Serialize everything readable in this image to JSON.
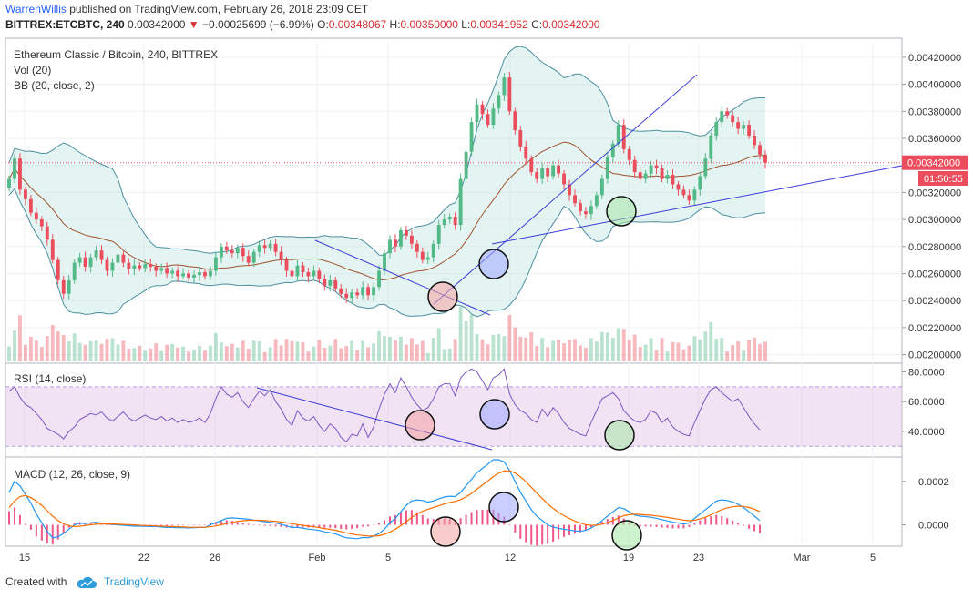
{
  "header": {
    "author": "WarrenWillis",
    "published": "published on TradingView.com, February 26, 2018 23:09 CET",
    "symbol": "BITTREX:ETCBTC, 240",
    "last": "0.00342000",
    "change_icon": "down-triangle-icon",
    "change": "−0.00025699 (−6.99%)",
    "open_label": "O:",
    "open": "0.00348067",
    "high_label": "H:",
    "high": "0.00350000",
    "low_label": "L:",
    "low": "0.00341952",
    "close_label": "C:",
    "close": "0.00342000"
  },
  "legend": {
    "title": "Ethereum Classic / Bitcoin, 240, BITTREX",
    "vol": "Vol (20)",
    "bb": "BB (20, close, 2)",
    "rsi": "RSI (14, close)",
    "macd": "MACD (12, 26, close, 9)"
  },
  "price_tag": {
    "value": "0.00342000",
    "countdown": "01:50:55"
  },
  "footer": {
    "created_with": "Created with",
    "brand": "TradingView",
    "brand_icon": "cloud-logo-icon"
  },
  "colors": {
    "up": "#53b987",
    "down": "#eb4d5c",
    "bb": "#4b8fa0",
    "basis": "#a0522d",
    "rsi": "#7e57c2",
    "macd": "#2196f3",
    "signal": "#ff6d00",
    "trend": "#3b3bd6"
  },
  "chart_data": {
    "type": "candlestick",
    "title": "Ethereum Classic / Bitcoin, 240, BITTREX",
    "x_ticks": [
      "15",
      "22",
      "26",
      "Feb",
      "5",
      "12",
      "19",
      "23",
      "Mar",
      "5"
    ],
    "price": {
      "ylim": [
        0.00195,
        0.0043
      ],
      "ticks": [
        "0.00420000",
        "0.00400000",
        "0.00380000",
        "0.00360000",
        "0.00340000",
        "0.00320000",
        "0.00300000",
        "0.00280000",
        "0.00260000",
        "0.00240000",
        "0.00220000",
        "0.00200000"
      ],
      "closes": [
        0.0033,
        0.00345,
        0.00322,
        0.00315,
        0.00305,
        0.003,
        0.00295,
        0.00285,
        0.0027,
        0.00255,
        0.00245,
        0.00255,
        0.00268,
        0.00272,
        0.00265,
        0.00272,
        0.00277,
        0.0027,
        0.00262,
        0.00268,
        0.00274,
        0.00268,
        0.00263,
        0.00266,
        0.00264,
        0.00267,
        0.00265,
        0.00262,
        0.00264,
        0.0026,
        0.00262,
        0.00258,
        0.0026,
        0.00257,
        0.00259,
        0.00261,
        0.00258,
        0.00262,
        0.00272,
        0.0028,
        0.00277,
        0.00275,
        0.00279,
        0.00273,
        0.00268,
        0.00276,
        0.00281,
        0.00279,
        0.00282,
        0.00276,
        0.0027,
        0.00262,
        0.00258,
        0.00266,
        0.00261,
        0.00258,
        0.00262,
        0.00256,
        0.00251,
        0.00255,
        0.00249,
        0.00245,
        0.00242,
        0.00246,
        0.00244,
        0.0025,
        0.00244,
        0.0025,
        0.00262,
        0.00275,
        0.00285,
        0.0028,
        0.00292,
        0.00288,
        0.00282,
        0.00276,
        0.0027,
        0.00272,
        0.00282,
        0.00296,
        0.003,
        0.00302,
        0.00296,
        0.0033,
        0.0035,
        0.00372,
        0.00385,
        0.00378,
        0.0037,
        0.00382,
        0.00392,
        0.00405,
        0.0038,
        0.00366,
        0.00354,
        0.00345,
        0.00335,
        0.0033,
        0.00338,
        0.00332,
        0.0034,
        0.00334,
        0.00326,
        0.00318,
        0.00312,
        0.00306,
        0.00304,
        0.0031,
        0.00318,
        0.0033,
        0.00346,
        0.00356,
        0.0037,
        0.00352,
        0.00344,
        0.00335,
        0.0033,
        0.00334,
        0.0034,
        0.00338,
        0.0033,
        0.00333,
        0.00326,
        0.00322,
        0.00318,
        0.00314,
        0.00322,
        0.00332,
        0.00345,
        0.00362,
        0.00372,
        0.0038,
        0.00377,
        0.00372,
        0.00367,
        0.0037,
        0.00362,
        0.00355,
        0.00348,
        0.00342
      ],
      "last": 0.00342
    },
    "volume_note": "Vol (20)",
    "rsi": {
      "ylim": [
        24,
        84
      ],
      "ticks": [
        "80.0000",
        "60.0000",
        "40.0000"
      ],
      "band": [
        30,
        70
      ],
      "values": [
        67,
        70,
        63,
        58,
        56,
        52,
        48,
        42,
        40,
        38,
        35,
        40,
        43,
        48,
        50,
        52,
        51,
        53,
        49,
        47,
        50,
        53,
        49,
        47,
        49,
        51,
        49,
        48,
        50,
        47,
        49,
        46,
        48,
        46,
        47,
        49,
        46,
        52,
        62,
        70,
        65,
        63,
        66,
        60,
        56,
        62,
        67,
        64,
        68,
        60,
        55,
        48,
        44,
        54,
        49,
        47,
        50,
        44,
        40,
        45,
        42,
        36,
        33,
        38,
        37,
        45,
        36,
        43,
        55,
        65,
        72,
        66,
        76,
        70,
        63,
        58,
        54,
        56,
        62,
        70,
        72,
        72,
        64,
        76,
        80,
        82,
        80,
        74,
        68,
        76,
        78,
        82,
        65,
        58,
        54,
        52,
        48,
        46,
        55,
        50,
        56,
        52,
        46,
        42,
        40,
        38,
        37,
        46,
        54,
        62,
        64,
        66,
        62,
        54,
        50,
        47,
        46,
        48,
        54,
        52,
        46,
        49,
        43,
        40,
        38,
        37,
        46,
        54,
        62,
        68,
        70,
        66,
        63,
        60,
        62,
        56,
        50,
        45,
        41
      ]
    },
    "macd": {
      "ylim": [
        -9e-05,
        0.0003
      ],
      "ticks": [
        "0.0002",
        "0.0000"
      ],
      "macd": [
        0.00015,
        0.0002,
        0.00018,
        0.00014,
        0.0001,
        5e-05,
        1e-05,
        -3e-05,
        -6e-05,
        -5.5e-05,
        -4e-05,
        -2e-05,
        0.0,
        8e-06,
        5e-06,
        1e-05,
        1.2e-05,
        8e-06,
        4e-06,
        2e-06,
        0.0,
        -2e-06,
        -4e-06,
        -6e-06,
        -6e-06,
        -7e-06,
        -8e-06,
        -8e-06,
        -1e-05,
        -1.2e-05,
        -1.2e-05,
        -1.3e-05,
        -1.3e-05,
        -1.4e-05,
        -1.3e-05,
        -1.2e-05,
        -1.2e-05,
        0.0,
        1e-05,
        2e-05,
        3e-05,
        3.2e-05,
        3e-05,
        2.8e-05,
        2.6e-05,
        2.2e-05,
        1.8e-05,
        1.5e-05,
        1.2e-05,
        8e-06,
        2e-06,
        -5e-06,
        -1.2e-05,
        -1.2e-05,
        -1.5e-05,
        -2e-05,
        -2.2e-05,
        -2.6e-05,
        -3.2e-05,
        -3.6e-05,
        -4.2e-05,
        -5.2e-05,
        -6e-05,
        -6.2e-05,
        -6.4e-05,
        -5.8e-05,
        -6e-05,
        -5.2e-05,
        -4e-05,
        -2e-05,
        1e-05,
        3e-05,
        6e-05,
        9e-05,
        0.00011,
        0.000115,
        0.000112,
        0.000105,
        0.00011,
        0.00012,
        0.000128,
        0.000132,
        0.00013,
        0.00015,
        0.00018,
        0.00021,
        0.00024,
        0.00026,
        0.00028,
        0.0003,
        0.0003,
        0.00029,
        0.00025,
        0.0002,
        0.00015,
        0.00011,
        7e-05,
        4e-05,
        2e-05,
        0.0,
        -1e-05,
        -1.6e-05,
        -2e-05,
        -2.4e-05,
        -2.8e-05,
        -3e-05,
        -2.5e-05,
        -1.5e-05,
        0.0,
        2e-05,
        4e-05,
        6e-05,
        8e-05,
        7.5e-05,
        6e-05,
        4.5e-05,
        4e-05,
        3.8e-05,
        3.5e-05,
        3e-05,
        2.4e-05,
        1.8e-05,
        1.2e-05,
        8e-06,
        4e-06,
        8e-06,
        3e-05,
        5e-05,
        7e-05,
        9e-05,
        0.00011,
        0.000115,
        0.000112,
        0.000105,
        9.5e-05,
        8e-05,
        6e-05,
        4e-05,
        2e-05
      ],
      "signal": [
        8e-05,
        0.00011,
        0.00013,
        0.000135,
        0.000125,
        0.00011,
        9e-05,
        6.5e-05,
        4e-05,
        2e-05,
        5e-06,
        -5e-06,
        -8e-06,
        -6e-06,
        -3e-06,
        0.0,
        3e-06,
        4e-06,
        4e-06,
        4e-06,
        3e-06,
        2e-06,
        1e-06,
        0.0,
        -2e-06,
        -3e-06,
        -4e-06,
        -5e-06,
        -6e-06,
        -7e-06,
        -8e-06,
        -9e-06,
        -1e-05,
        -1.1e-05,
        -1.1e-05,
        -1.1e-05,
        -1.1e-05,
        -9e-06,
        -5e-06,
        0.0,
        6e-06,
        1.2e-05,
        1.6e-05,
        1.9e-05,
        2.1e-05,
        2.1e-05,
        2.1e-05,
        2e-05,
        1.8e-05,
        1.6e-05,
        1.3e-05,
        9e-06,
        5e-06,
        1e-06,
        -2e-06,
        -6e-06,
        -9e-06,
        -1.3e-05,
        -1.7e-05,
        -2.1e-05,
        -2.5e-05,
        -3.1e-05,
        -3.7e-05,
        -4.2e-05,
        -4.7e-05,
        -4.9e-05,
        -5.2e-05,
        -5.2e-05,
        -5e-05,
        -4.4e-05,
        -3.3e-05,
        -2e-05,
        -4e-06,
        1.5e-05,
        3.4e-05,
        5e-05,
        6.3e-05,
        7.2e-05,
        8e-05,
        8.8e-05,
        9.6e-05,
        0.000103,
        0.000108,
        0.000116,
        0.000129,
        0.000145,
        0.000164,
        0.000183,
        0.000202,
        0.000222,
        0.000238,
        0.000248,
        0.000249,
        0.000239,
        0.000221,
        0.000199,
        0.000173,
        0.000146,
        0.000121,
        9.7e-05,
        7.6e-05,
        5.7e-05,
        4.2e-05,
        2.9e-05,
        1.7e-05,
        8e-06,
        1e-06,
        -2e-06,
        -2e-06,
        3e-06,
        1e-05,
        2e-05,
        3.2e-05,
        4.2e-05,
        4.7e-05,
        4.9e-05,
        4.8e-05,
        4.6e-05,
        4.4e-05,
        4.1e-05,
        3.8e-05,
        3.4e-05,
        3e-05,
        2.6e-05,
        2.2e-05,
        1.9e-05,
        2.1e-05,
        2.7e-05,
        3.5e-05,
        4.6e-05,
        5.9e-05,
        7e-05,
        7.8e-05,
        8.3e-05,
        8.6e-05,
        8.5e-05,
        8e-05,
        7.2e-05,
        6.2e-05
      ]
    }
  }
}
